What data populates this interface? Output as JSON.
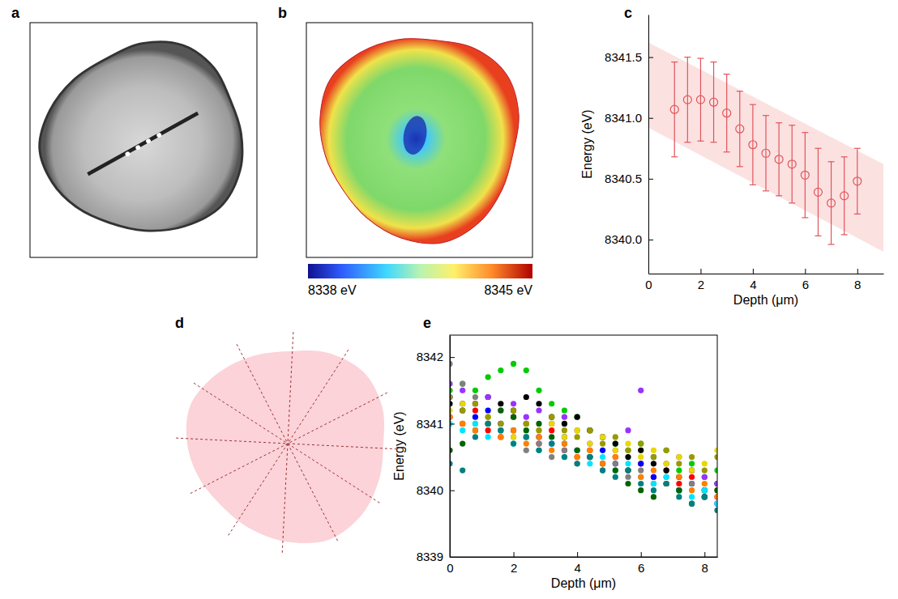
{
  "chart_data": [
    {
      "panel": "a",
      "type": "image"
    },
    {
      "panel": "b",
      "type": "image",
      "colorbar": {
        "range": [
          8338,
          8345
        ],
        "ticks": [
          {
            "value": 8338,
            "label": "8338 eV"
          },
          {
            "value": 8345,
            "label": "8345 eV"
          }
        ]
      }
    },
    {
      "panel": "c",
      "type": "errorbar",
      "xlabel": "Depth (μm)",
      "ylabel": "Energy (eV)",
      "x": [
        1,
        1.5,
        2,
        2.5,
        3,
        3.5,
        4,
        4.5,
        5,
        5.5,
        6,
        6.5,
        7,
        7.5,
        8
      ],
      "values": [
        8341.07,
        8341.15,
        8341.15,
        8341.13,
        8341.04,
        8340.91,
        8340.78,
        8340.71,
        8340.66,
        8340.62,
        8340.53,
        8340.39,
        8340.3,
        8340.36,
        8340.48
      ],
      "errors": [
        0.39,
        0.35,
        0.34,
        0.33,
        0.32,
        0.31,
        0.33,
        0.31,
        0.3,
        0.32,
        0.35,
        0.36,
        0.34,
        0.32,
        0.27
      ],
      "color": "#e0555a",
      "marker": "open_circle",
      "band": {
        "x": [
          0,
          9
        ],
        "upper": [
          8341.62,
          8340.62
        ],
        "lower": [
          8340.92,
          8339.9
        ]
      },
      "xlim": [
        0,
        9
      ],
      "ylim": [
        8339.72,
        8341.85
      ],
      "xticks": [
        0,
        2,
        4,
        6,
        8
      ],
      "yticks": [
        {
          "value": 8340,
          "label": "8340.0"
        },
        {
          "value": 8340.5,
          "label": "8340.5"
        },
        {
          "value": 8341,
          "label": "8341.0"
        },
        {
          "value": 8341.5,
          "label": "8341.5"
        }
      ]
    },
    {
      "panel": "d",
      "type": "diagram"
    },
    {
      "panel": "e",
      "type": "scatter",
      "xlabel": "Depth (μm)",
      "ylabel": "Energy (eV)",
      "marker": "circle",
      "x": [
        0,
        0.4,
        0.8,
        1.2,
        1.6,
        2.0,
        2.4,
        2.8,
        3.2,
        3.6,
        4.0,
        4.4,
        4.8,
        5.2,
        5.6,
        6.0,
        6.4,
        6.8,
        7.2,
        7.6,
        8.0,
        8.4
      ],
      "series": [
        {
          "color": "#ff0000",
          "values": [
            8341.1,
            8341.0,
            8341.2,
            8340.9,
            8340.8,
            8341.1,
            8340.8,
            8340.7,
            8340.9,
            8340.6,
            8340.5,
            8340.6,
            8340.4,
            8340.5,
            8340.3,
            8340.4,
            8340.2,
            8340.3,
            8340.1,
            8340.2,
            8340.0,
            8339.9
          ]
        },
        {
          "color": "#00cc00",
          "values": [
            8341.5,
            8341.6,
            8341.5,
            8341.7,
            8341.8,
            8341.9,
            8341.8,
            8341.5,
            8341.3,
            8341.2,
            8341.1,
            8340.9,
            8340.8,
            8340.7,
            8340.6,
            8340.7,
            8340.5,
            8340.6,
            8340.3,
            8340.4,
            8340.2,
            8340.3
          ]
        },
        {
          "color": "#0000ff",
          "values": [
            8341.4,
            8341.3,
            8341.1,
            8341.2,
            8341.0,
            8340.9,
            8341.0,
            8340.8,
            8340.7,
            8340.8,
            8340.6,
            8340.5,
            8340.6,
            8340.4,
            8340.3,
            8340.4,
            8340.2,
            8340.1,
            8340.0,
            8340.1,
            8339.9,
            8339.8
          ]
        },
        {
          "color": "#000000",
          "values": [
            8341.3,
            8341.2,
            8341.3,
            8341.4,
            8341.3,
            8341.2,
            8341.4,
            8341.3,
            8341.1,
            8341.0,
            8341.1,
            8340.9,
            8340.8,
            8340.7,
            8340.5,
            8340.6,
            8340.4,
            8340.3,
            8340.2,
            8340.3,
            8340.0,
            8340.1
          ]
        },
        {
          "color": "#808080",
          "values": [
            8341.9,
            8341.6,
            8341.4,
            8341.0,
            8340.9,
            8340.8,
            8340.6,
            8340.7,
            8340.5,
            8340.6,
            8340.4,
            8340.5,
            8340.3,
            8340.4,
            8340.2,
            8340.3,
            8340.1,
            8340.2,
            8340.0,
            8340.1,
            8339.9,
            8340.0
          ]
        },
        {
          "color": "#9933ff",
          "values": [
            8341.6,
            8341.5,
            8341.3,
            8341.4,
            8341.2,
            8341.3,
            8341.1,
            8341.2,
            8341.0,
            8341.1,
            8340.9,
            8340.7,
            8340.8,
            8340.6,
            8340.9,
            8341.5,
            8340.5,
            8340.4,
            8340.5,
            8340.3,
            8340.2,
            8340.1
          ]
        },
        {
          "color": "#e6d800",
          "values": [
            8341.2,
            8341.3,
            8341.0,
            8341.1,
            8340.9,
            8340.8,
            8341.0,
            8340.9,
            8341.0,
            8340.8,
            8340.9,
            8340.7,
            8340.8,
            8340.6,
            8340.7,
            8340.5,
            8340.6,
            8340.4,
            8340.5,
            8340.3,
            8340.4,
            8340.6
          ]
        },
        {
          "color": "#00e5ff",
          "values": [
            8341.0,
            8340.9,
            8341.0,
            8340.8,
            8340.9,
            8340.7,
            8340.8,
            8340.6,
            8340.7,
            8340.5,
            8340.6,
            8340.4,
            8340.5,
            8340.3,
            8340.4,
            8340.2,
            8340.1,
            8340.2,
            8340.0,
            8339.9,
            8340.0,
            8339.8
          ]
        },
        {
          "color": "#006400",
          "values": [
            8340.6,
            8340.7,
            8340.9,
            8341.0,
            8341.2,
            8341.1,
            8340.9,
            8341.0,
            8340.8,
            8340.7,
            8340.6,
            8340.5,
            8340.4,
            8340.3,
            8340.1,
            8340.0,
            8339.9,
            8340.1,
            8340.0,
            8339.8,
            8339.9,
            8340.0
          ]
        },
        {
          "color": "#999900",
          "values": [
            8341.4,
            8341.2,
            8341.3,
            8341.1,
            8341.0,
            8341.2,
            8341.0,
            8340.9,
            8341.1,
            8340.9,
            8340.8,
            8340.9,
            8340.7,
            8340.8,
            8340.6,
            8340.7,
            8340.5,
            8340.6,
            8340.4,
            8340.5,
            8340.3,
            8340.5
          ]
        },
        {
          "color": "#ff8000",
          "values": [
            8341.1,
            8341.0,
            8340.9,
            8341.0,
            8340.8,
            8340.9,
            8340.7,
            8340.8,
            8340.6,
            8340.7,
            8340.5,
            8340.6,
            8340.4,
            8340.5,
            8340.3,
            8340.2,
            8340.3,
            8340.1,
            8340.2,
            8340.0,
            8340.1,
            8339.9
          ]
        },
        {
          "color": "#008080",
          "values": [
            8340.4,
            8340.3,
            8340.8,
            8341.0,
            8340.9,
            8340.7,
            8340.8,
            8340.6,
            8340.7,
            8340.5,
            8340.4,
            8340.5,
            8340.3,
            8340.2,
            8340.3,
            8340.1,
            8340.0,
            8340.1,
            8339.9,
            8339.8,
            8339.9,
            8339.7
          ]
        }
      ],
      "xlim": [
        0,
        8.4
      ],
      "ylim": [
        8339,
        8342.33
      ],
      "xticks": [
        0,
        2,
        4,
        6,
        8
      ],
      "yticks": [
        8339,
        8340,
        8341,
        8342
      ]
    }
  ]
}
